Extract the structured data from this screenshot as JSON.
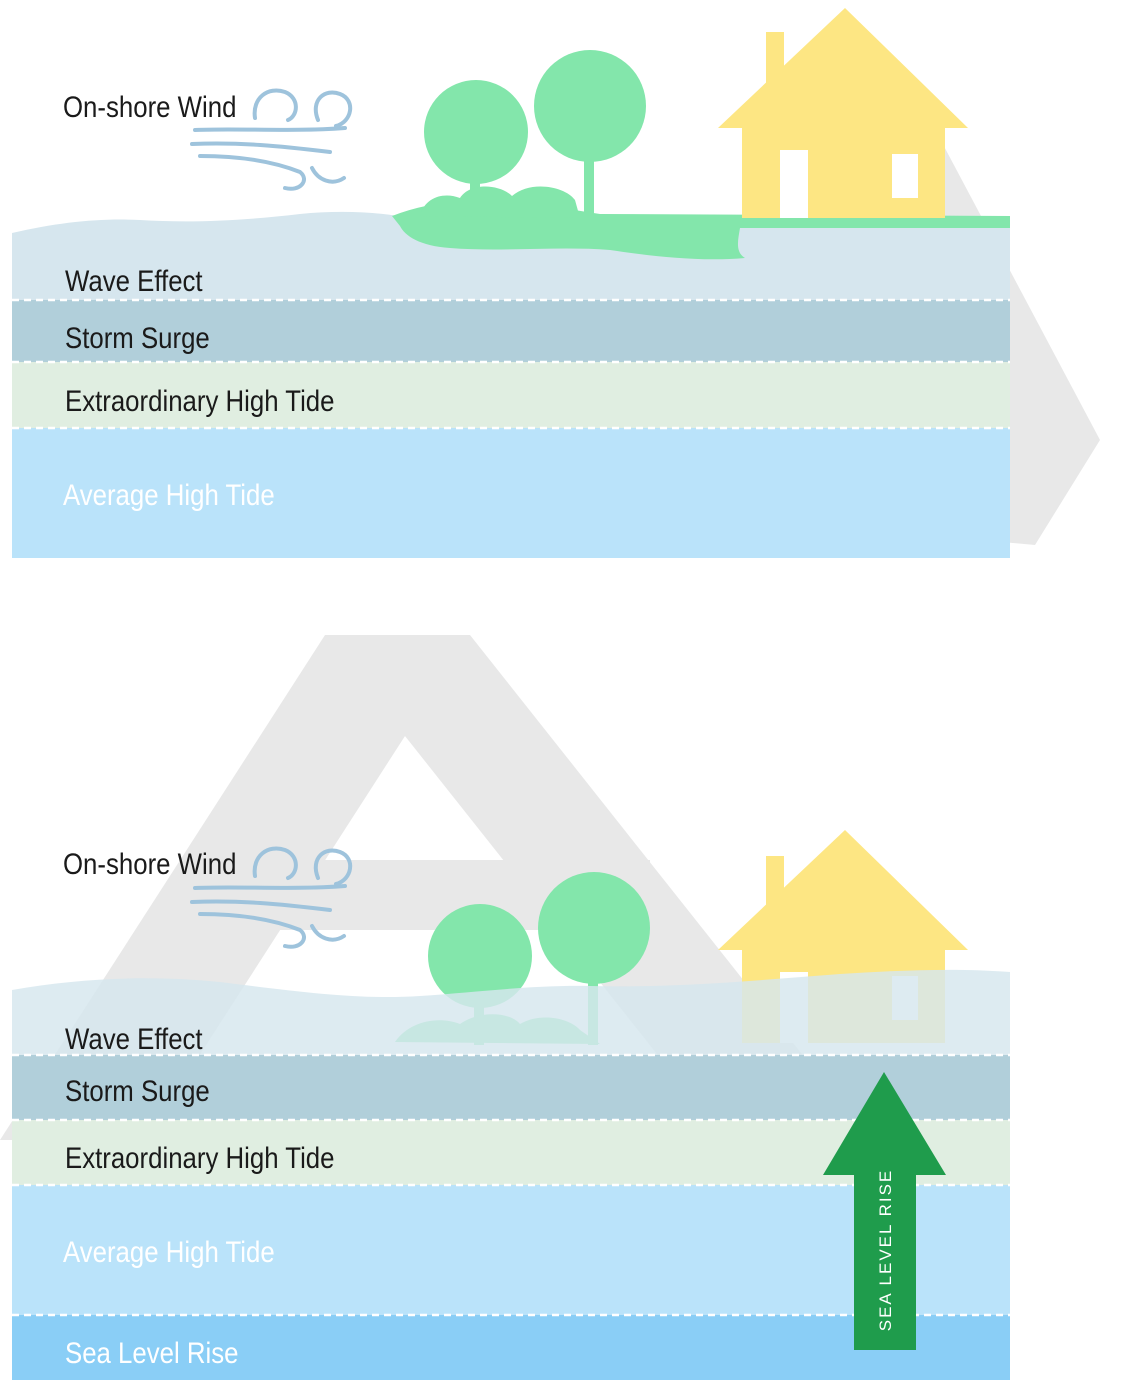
{
  "colors": {
    "wave_effect": "#d6e6ee",
    "storm_surge": "#b1cfda",
    "extraordinary_high_tide": "#e0eee1",
    "average_high_tide": "#bae3fa",
    "sea_level_rise_band": "#8acef6",
    "vegetation": "#83e6ab",
    "house": "#fde683",
    "wind": "#9ec3dc",
    "arrow": "#1f9c4c",
    "watermark": "#e8e8e8"
  },
  "top_panel": {
    "wind_label": "On-shore Wind",
    "layers": {
      "wave_effect": "Wave Effect",
      "storm_surge": "Storm Surge",
      "extraordinary_high_tide": "Extraordinary High Tide",
      "average_high_tide": "Average High Tide"
    }
  },
  "bottom_panel": {
    "wind_label": "On-shore Wind",
    "layers": {
      "wave_effect": "Wave Effect",
      "storm_surge": "Storm Surge",
      "extraordinary_high_tide": "Extraordinary High Tide",
      "average_high_tide": "Average High Tide",
      "sea_level_rise": "Sea Level Rise"
    },
    "arrow_label": "SEA LEVEL RISE"
  }
}
